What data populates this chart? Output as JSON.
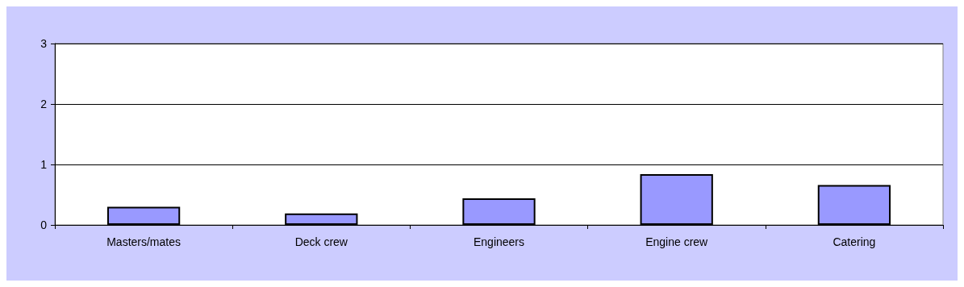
{
  "chart_data": {
    "type": "bar",
    "categories": [
      "Masters/mates",
      "Deck crew",
      "Engineers",
      "Engine crew",
      "Catering"
    ],
    "values": [
      0.3,
      0.19,
      0.44,
      0.84,
      0.66
    ],
    "color": "#9999ff",
    "ylim": [
      0,
      3
    ],
    "yticks": [
      0,
      1,
      2,
      3
    ],
    "grid": "y"
  }
}
